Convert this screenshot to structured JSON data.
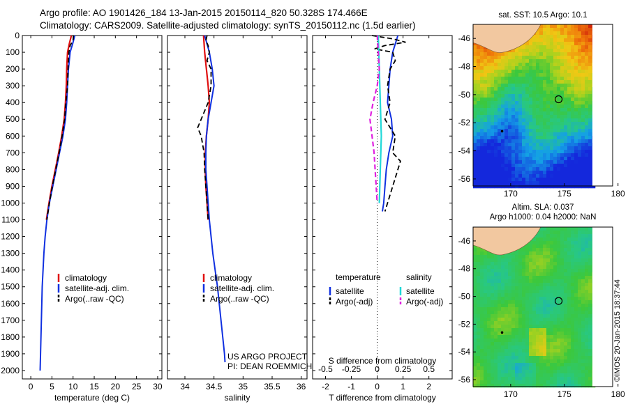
{
  "header": {
    "line1": "Argo profile: AO 1901426_184 13-Jan-2015 20150114_820 50.328S 174.466E",
    "line2": "Climatology: CARS2009. Satellite-adjusted climatology: synTS_20150112.nc (1.5d earlier)"
  },
  "credits": {
    "project": "US ARGO PROJECT",
    "pi": "PI: DEAN ROEMMICH",
    "imos": "©IMOS 20-Jan-2015 18:37:44"
  },
  "colors": {
    "climatology": "#e01010",
    "satellite": "#1030e0",
    "argo": "#000000",
    "satellite_s": "#20d8d8",
    "argo_s": "#e020e0",
    "land": "#f2c8a0"
  },
  "chart_data": [
    {
      "type": "line",
      "xlabel": "temperature (deg C)",
      "ylabel": "",
      "xlim": [
        -2,
        31
      ],
      "ylim": [
        2050,
        0
      ],
      "xticks": [
        "0",
        "5",
        "10",
        "15",
        "20",
        "25",
        "30"
      ],
      "yticks": [
        "0",
        "100",
        "200",
        "300",
        "400",
        "500",
        "600",
        "700",
        "800",
        "900",
        "1000",
        "1100",
        "1200",
        "1300",
        "1400",
        "1500",
        "1600",
        "1700",
        "1800",
        "1900",
        "2000"
      ],
      "legend": [
        "climatology",
        "satellite-adj. clim.",
        "Argo(..raw -QC)"
      ],
      "series": [
        {
          "name": "climatology",
          "depth": [
            0,
            50,
            100,
            200,
            300,
            400,
            500,
            600,
            700,
            800,
            900,
            1000,
            1100
          ],
          "values": [
            9.6,
            9.1,
            8.7,
            8.5,
            8.4,
            8.2,
            7.9,
            7.3,
            6.6,
            5.8,
            5.0,
            4.3,
            3.7
          ]
        },
        {
          "name": "satellite-adj. clim.",
          "depth": [
            0,
            50,
            100,
            200,
            300,
            400,
            500,
            600,
            700,
            800,
            900,
            1000,
            1100,
            1200,
            1300,
            1400,
            1500,
            1600,
            1700,
            1800,
            1900,
            2000
          ],
          "values": [
            10.4,
            9.9,
            9.3,
            8.9,
            8.7,
            8.5,
            8.2,
            7.6,
            6.8,
            6.0,
            5.2,
            4.4,
            3.8,
            3.4,
            3.1,
            2.9,
            2.7,
            2.6,
            2.5,
            2.4,
            2.3,
            2.2
          ]
        },
        {
          "name": "Argo(..raw -QC)",
          "depth": [
            0,
            30,
            60,
            100,
            150,
            200,
            300,
            400,
            500,
            600,
            700,
            800,
            900,
            1000,
            1100
          ],
          "values": [
            10.1,
            10.0,
            9.3,
            9.0,
            8.9,
            8.8,
            8.7,
            8.3,
            8.0,
            7.4,
            6.7,
            5.9,
            5.1,
            4.4,
            3.8
          ]
        }
      ]
    },
    {
      "type": "line",
      "xlabel": "salinity",
      "ylabel": "",
      "xlim": [
        33.7,
        36.1
      ],
      "ylim": [
        2050,
        0
      ],
      "xticks": [
        "34",
        "34.5",
        "35",
        "35.5",
        "36"
      ],
      "legend": [
        "climatology",
        "satellite-adj. clim.",
        "Argo(..raw -QC)"
      ],
      "series": [
        {
          "name": "climatology",
          "depth": [
            0,
            100,
            200,
            300,
            400,
            500,
            600,
            700,
            800,
            900,
            1000,
            1100
          ],
          "values": [
            34.32,
            34.34,
            34.37,
            34.4,
            34.42,
            34.4,
            34.37,
            34.35,
            34.35,
            34.36,
            34.38,
            34.4
          ]
        },
        {
          "name": "satellite-adj. clim.",
          "depth": [
            0,
            50,
            100,
            200,
            300,
            400,
            500,
            600,
            700,
            800,
            900,
            1000,
            1100,
            1200,
            1300,
            1400,
            1500,
            1600,
            1700,
            1800,
            1900,
            1950
          ],
          "values": [
            34.34,
            34.38,
            34.42,
            34.47,
            34.5,
            34.45,
            34.4,
            34.37,
            34.36,
            34.36,
            34.38,
            34.4,
            34.42,
            34.45,
            34.48,
            34.52,
            34.56,
            34.59,
            34.62,
            34.65,
            34.68,
            34.69
          ]
        },
        {
          "name": "Argo(..raw -QC)",
          "depth": [
            0,
            30,
            60,
            100,
            150,
            200,
            300,
            400,
            500,
            550,
            600,
            700,
            800,
            900,
            1000,
            1100
          ],
          "values": [
            34.38,
            34.36,
            34.4,
            34.42,
            34.38,
            34.45,
            34.45,
            34.4,
            34.28,
            34.22,
            34.28,
            34.33,
            34.34,
            34.36,
            34.38,
            34.4
          ]
        }
      ]
    },
    {
      "type": "line",
      "xlabel": "T difference from climatology",
      "xlabel2": "S difference from climatology",
      "xlim": [
        -2.5,
        2.9
      ],
      "ylim": [
        2050,
        0
      ],
      "xticks": [
        "-2",
        "-1",
        "0",
        "1",
        "2"
      ],
      "xticks2": [
        "-0.5",
        "-0.25",
        "0",
        "0.25",
        "0.5"
      ],
      "legend_headers": [
        "temperature",
        "salinity"
      ],
      "legend": [
        "satellite",
        "Argo(-adj)",
        "satellite",
        "Argo(-adj)"
      ],
      "series": [
        {
          "name": "satellite",
          "depth": [
            0,
            50,
            100,
            200,
            300,
            400,
            500,
            600,
            700,
            800,
            900,
            1000,
            1050
          ],
          "values": [
            0.8,
            0.7,
            0.6,
            0.5,
            0.45,
            0.4,
            0.55,
            0.6,
            0.45,
            0.35,
            0.3,
            0.25,
            0.2
          ]
        },
        {
          "name": "Argo(-adj)",
          "depth": [
            0,
            20,
            40,
            60,
            80,
            100,
            150,
            200,
            300,
            400,
            500,
            600,
            700,
            750,
            800,
            900,
            1000,
            1050
          ],
          "values": [
            -0.2,
            0.6,
            1.1,
            0.3,
            -0.1,
            0.6,
            0.7,
            0.5,
            0.4,
            0.5,
            0.3,
            0.7,
            0.6,
            0.9,
            0.8,
            0.6,
            0.4,
            0.3
          ]
        },
        {
          "name": "satellite",
          "depth": [
            0,
            200,
            400,
            600,
            800,
            1000
          ],
          "values": [
            0.01,
            0.02,
            0.03,
            0.04,
            0.03,
            0.02
          ]
        },
        {
          "name": "Argo(-adj)",
          "depth": [
            0,
            100,
            200,
            300,
            400,
            500,
            600,
            700,
            800,
            900,
            1000
          ],
          "values": [
            0.0,
            0.01,
            0.02,
            0.0,
            -0.04,
            -0.07,
            -0.05,
            -0.03,
            -0.02,
            -0.01,
            0.0
          ]
        }
      ]
    }
  ],
  "maps": [
    {
      "title": "sat. SST: 10.5  Argo: 10.1",
      "subtitle": "",
      "lonlim": [
        166.5,
        179.5
      ],
      "latlim": [
        -56.5,
        -45
      ],
      "xticks": [
        "170",
        "175",
        "180"
      ],
      "yticks": [
        "-46",
        "-48",
        "-50",
        "-52",
        "-54",
        "-56"
      ],
      "float_lon": 174.466,
      "float_lat": -50.328
    },
    {
      "title": "Altim. SLA: 0.037",
      "subtitle": "Argo h1000: 0.04 h2000: NaN",
      "lonlim": [
        166.5,
        179.5
      ],
      "latlim": [
        -56.5,
        -45
      ],
      "xticks": [
        "170",
        "175",
        "180"
      ],
      "yticks": [
        "-46",
        "-48",
        "-50",
        "-52",
        "-54",
        "-56"
      ],
      "float_lon": 174.466,
      "float_lat": -50.328
    }
  ]
}
